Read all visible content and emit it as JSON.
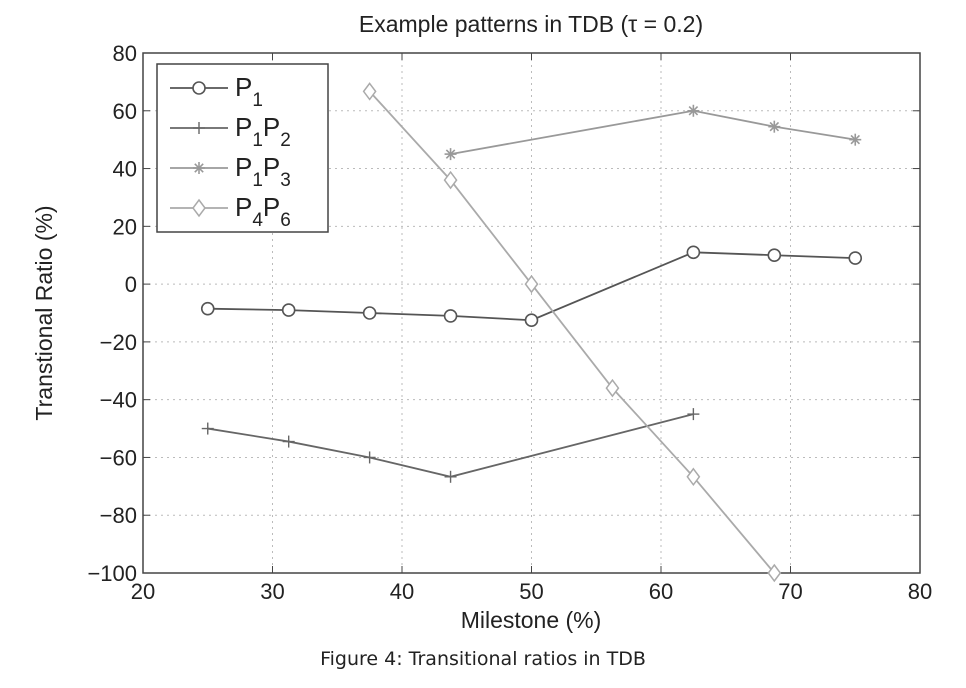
{
  "chart_data": {
    "type": "line",
    "title": "Example patterns in TDB (τ = 0.2)",
    "xlabel": "Milestone (%)",
    "ylabel": "Transtional Ratio (%)",
    "xlim": [
      20,
      80
    ],
    "ylim": [
      -100,
      80
    ],
    "xticks": [
      20,
      30,
      40,
      50,
      60,
      70,
      80
    ],
    "yticks": [
      80,
      60,
      40,
      20,
      0,
      -20,
      -40,
      -60,
      -80,
      -100
    ],
    "ytick_labels": [
      "80",
      "60",
      "40",
      "20",
      "0",
      "−20",
      "−40",
      "−60",
      "−80",
      "−100"
    ],
    "grid": true,
    "legend_position": "top-left",
    "series": [
      {
        "name": "P1",
        "label_parts": [
          "P",
          "1"
        ],
        "marker": "circle",
        "color": "#555555",
        "x": [
          25,
          31.25,
          37.5,
          43.75,
          50,
          62.5,
          68.75,
          75
        ],
        "y": [
          -8.5,
          -9,
          -10,
          -11,
          -12.5,
          11,
          10,
          9
        ]
      },
      {
        "name": "P1P2",
        "label_parts": [
          "P",
          "1",
          "P",
          "2"
        ],
        "marker": "plus",
        "color": "#666666",
        "x": [
          25,
          31.25,
          37.5,
          43.75,
          62.5
        ],
        "y": [
          -50,
          -54.5,
          -60,
          -66.7,
          -45
        ]
      },
      {
        "name": "P1P3",
        "label_parts": [
          "P",
          "1",
          "P",
          "3"
        ],
        "marker": "star",
        "color": "#999999",
        "x": [
          43.75,
          62.5,
          68.75,
          75
        ],
        "y": [
          45,
          60,
          54.5,
          50
        ]
      },
      {
        "name": "P4P6",
        "label_parts": [
          "P",
          "4",
          "P",
          "6"
        ],
        "marker": "diamond",
        "color": "#aaaaaa",
        "x": [
          37.5,
          43.75,
          50,
          56.25,
          62.5,
          68.75
        ],
        "y": [
          66.7,
          36,
          0,
          -36,
          -66.7,
          -100
        ]
      }
    ]
  },
  "caption": "Figure 4: Transitional ratios in TDB"
}
